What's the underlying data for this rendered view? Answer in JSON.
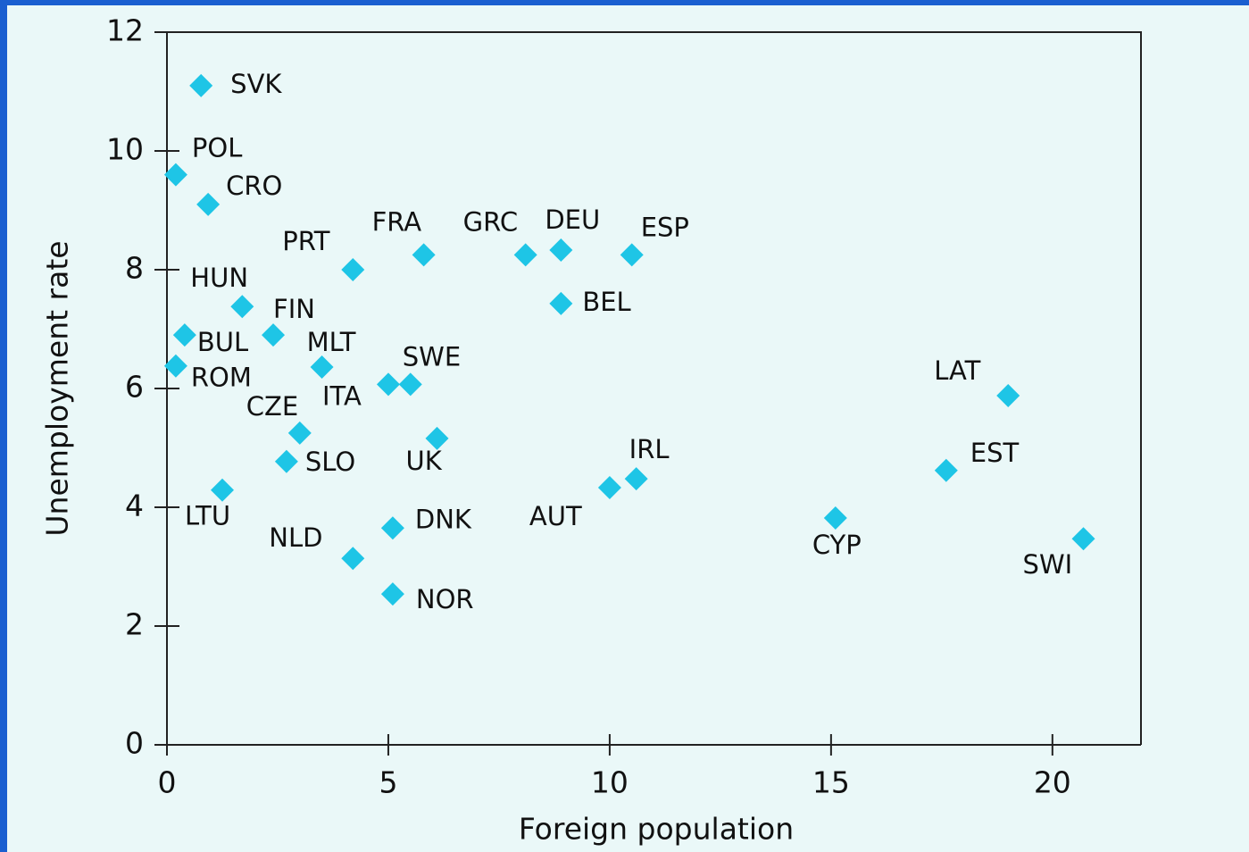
{
  "chart_data": {
    "type": "scatter",
    "x_label": "Foreign population",
    "y_label": "Unemployment rate",
    "xlim": [
      0,
      22
    ],
    "ylim": [
      0,
      12
    ],
    "xticks": [
      0,
      5,
      10,
      15,
      20
    ],
    "yticks": [
      0,
      2,
      4,
      6,
      8,
      10,
      12
    ],
    "series": [
      {
        "color": "#1ec5e6",
        "labels": [
          "SVK",
          "POL",
          "CRO",
          "FRA",
          "GRC",
          "DEU",
          "ESP",
          "PRT",
          "BEL",
          "HUN",
          "FIN",
          "BUL",
          "ROM",
          "MLT",
          "ITA",
          "SWE",
          "CZE",
          "UK",
          "SLO",
          "AUT",
          "IRL",
          "LTU",
          "LAT",
          "EST",
          "CYP",
          "SWI",
          "DNK",
          "NLD",
          "NOR"
        ],
        "x": [
          0.77,
          0.2,
          0.93,
          5.8,
          8.1,
          8.9,
          10.5,
          4.2,
          8.9,
          1.7,
          2.4,
          0.4,
          0.2,
          3.5,
          5.0,
          5.5,
          3.0,
          6.1,
          2.7,
          10.0,
          10.6,
          1.25,
          19.0,
          17.6,
          15.1,
          20.7,
          5.1,
          4.2,
          5.1
        ],
        "values": [
          11.1,
          9.6,
          9.1,
          8.25,
          8.25,
          8.33,
          8.25,
          8.0,
          7.43,
          7.38,
          6.9,
          6.9,
          6.38,
          6.36,
          6.07,
          6.07,
          5.25,
          5.16,
          4.77,
          4.33,
          4.48,
          4.29,
          5.88,
          4.62,
          3.82,
          3.47,
          3.65,
          3.14,
          2.54
        ]
      }
    ]
  }
}
